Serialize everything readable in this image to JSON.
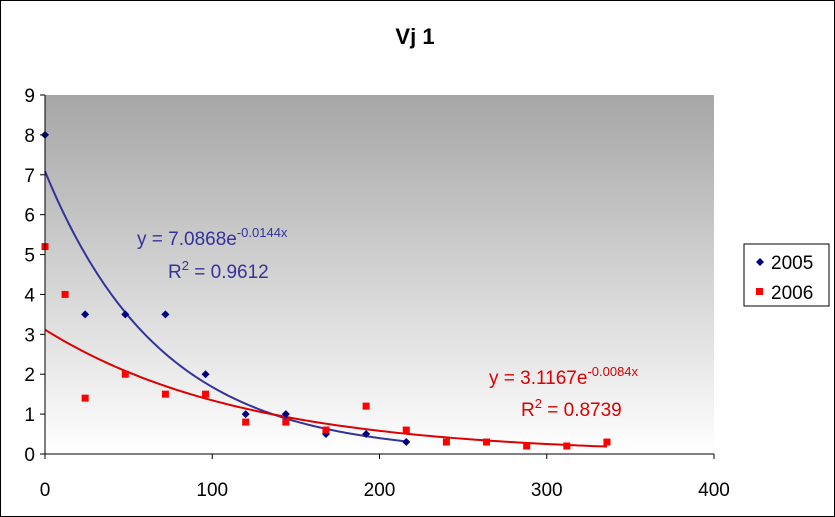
{
  "chart_data": {
    "type": "scatter",
    "title": "Vj 1",
    "xlabel": "",
    "ylabel": "",
    "xlim": [
      0,
      400
    ],
    "ylim": [
      0,
      9
    ],
    "x_ticks": [
      "0",
      "100",
      "200",
      "300",
      "400"
    ],
    "y_ticks": [
      "0",
      "1",
      "2",
      "3",
      "4",
      "5",
      "6",
      "7",
      "8",
      "9"
    ],
    "grid": false,
    "legend_position": "right",
    "series": [
      {
        "name": "2005",
        "color": "#000080",
        "trend_color": "#333399",
        "marker": "diamond",
        "points": [
          [
            0,
            8
          ],
          [
            24,
            3.5
          ],
          [
            48,
            3.5
          ],
          [
            72,
            3.5
          ],
          [
            96,
            2
          ],
          [
            120,
            1
          ],
          [
            144,
            1
          ],
          [
            168,
            0.5
          ],
          [
            192,
            0.5
          ],
          [
            216,
            0.3
          ]
        ],
        "trend": {
          "a": 7.0868,
          "b": -0.0144,
          "x_range": [
            0,
            216
          ],
          "equation_base": "y = 7.0868e",
          "equation_exp": "-0.0144x",
          "r2_base": "R",
          "r2_sup": "2",
          "r2_value": " = 0.9612"
        }
      },
      {
        "name": "2006",
        "color": "#ff0000",
        "trend_color": "#dd0000",
        "marker": "square",
        "points": [
          [
            0,
            5.2
          ],
          [
            12,
            4
          ],
          [
            24,
            1.4
          ],
          [
            48,
            2
          ],
          [
            72,
            1.5
          ],
          [
            96,
            1.5
          ],
          [
            120,
            0.8
          ],
          [
            144,
            0.8
          ],
          [
            168,
            0.6
          ],
          [
            192,
            1.2
          ],
          [
            216,
            0.6
          ],
          [
            240,
            0.3
          ],
          [
            264,
            0.3
          ],
          [
            288,
            0.2
          ],
          [
            312,
            0.2
          ],
          [
            336,
            0.3
          ]
        ],
        "trend": {
          "a": 3.1167,
          "b": -0.0084,
          "x_range": [
            0,
            336
          ],
          "equation_base": "y = 3.1167e",
          "equation_exp": "-0.0084x",
          "r2_base": "R",
          "r2_sup": "2",
          "r2_value": " = 0.8739"
        }
      }
    ]
  }
}
